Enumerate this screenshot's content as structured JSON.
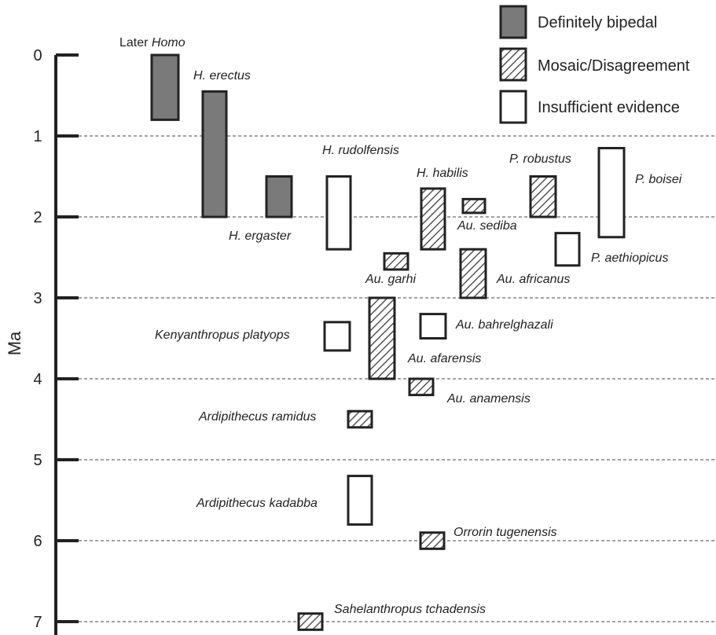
{
  "chart_data": {
    "type": "floating-bar",
    "ylabel": "Ma",
    "ylim": [
      0,
      7
    ],
    "y_ticks": [
      "0",
      "1",
      "2",
      "3",
      "4",
      "5",
      "6",
      "7"
    ],
    "y_reversed": true,
    "grid": "dashed horizontal at each Ma",
    "legend_position": "top-right",
    "categories": {
      "definite": "Definitely bipedal",
      "mosaic": "Mosaic/Disagreement",
      "insufficient": "Insufficient evidence"
    },
    "category_colors": {
      "definite": "#7a7a7a",
      "mosaic": "hatched",
      "insufficient": "#ffffff"
    },
    "species": [
      {
        "name_plain": "Later ",
        "name_italic": "Homo",
        "start": 0.0,
        "end": 0.8,
        "category": "definite"
      },
      {
        "name_plain": "",
        "name_italic": "H. erectus",
        "start": 0.45,
        "end": 2.0,
        "category": "definite"
      },
      {
        "name_plain": "",
        "name_italic": "H. ergaster",
        "start": 1.5,
        "end": 2.0,
        "category": "definite"
      },
      {
        "name_plain": "",
        "name_italic": "H. rudolfensis",
        "start": 1.5,
        "end": 2.4,
        "category": "insufficient"
      },
      {
        "name_plain": "",
        "name_italic": "H. habilis",
        "start": 1.65,
        "end": 2.4,
        "category": "mosaic"
      },
      {
        "name_plain": "",
        "name_italic": "Au. sediba",
        "start": 1.78,
        "end": 1.95,
        "category": "mosaic"
      },
      {
        "name_plain": "",
        "name_italic": "P. robustus",
        "start": 1.5,
        "end": 2.0,
        "category": "mosaic"
      },
      {
        "name_plain": "",
        "name_italic": "P. boisei",
        "start": 1.15,
        "end": 2.25,
        "category": "insufficient"
      },
      {
        "name_plain": "",
        "name_italic": "P. aethiopicus",
        "start": 2.2,
        "end": 2.6,
        "category": "insufficient"
      },
      {
        "name_plain": "",
        "name_italic": "Au. garhi",
        "start": 2.45,
        "end": 2.65,
        "category": "mosaic"
      },
      {
        "name_plain": "",
        "name_italic": "Au. africanus",
        "start": 2.4,
        "end": 3.0,
        "category": "mosaic"
      },
      {
        "name_plain": "",
        "name_italic": "Au. bahrelghazali",
        "start": 3.2,
        "end": 3.5,
        "category": "insufficient"
      },
      {
        "name_plain": "",
        "name_italic": "Kenyanthropus platyops",
        "start": 3.3,
        "end": 3.65,
        "category": "insufficient"
      },
      {
        "name_plain": "",
        "name_italic": "Au. afarensis",
        "start": 3.0,
        "end": 4.0,
        "category": "mosaic"
      },
      {
        "name_plain": "",
        "name_italic": "Au. anamensis",
        "start": 4.0,
        "end": 4.2,
        "category": "mosaic"
      },
      {
        "name_plain": "",
        "name_italic": "Ardipithecus ramidus",
        "start": 4.4,
        "end": 4.6,
        "category": "mosaic"
      },
      {
        "name_plain": "",
        "name_italic": "Ardipithecus kadabba",
        "start": 5.2,
        "end": 5.8,
        "category": "insufficient"
      },
      {
        "name_plain": "",
        "name_italic": "Orrorin tugenensis",
        "start": 5.9,
        "end": 6.1,
        "category": "mosaic"
      },
      {
        "name_plain": "",
        "name_italic": "Sahelanthropus tchadensis",
        "start": 6.9,
        "end": 7.1,
        "category": "mosaic"
      }
    ]
  }
}
